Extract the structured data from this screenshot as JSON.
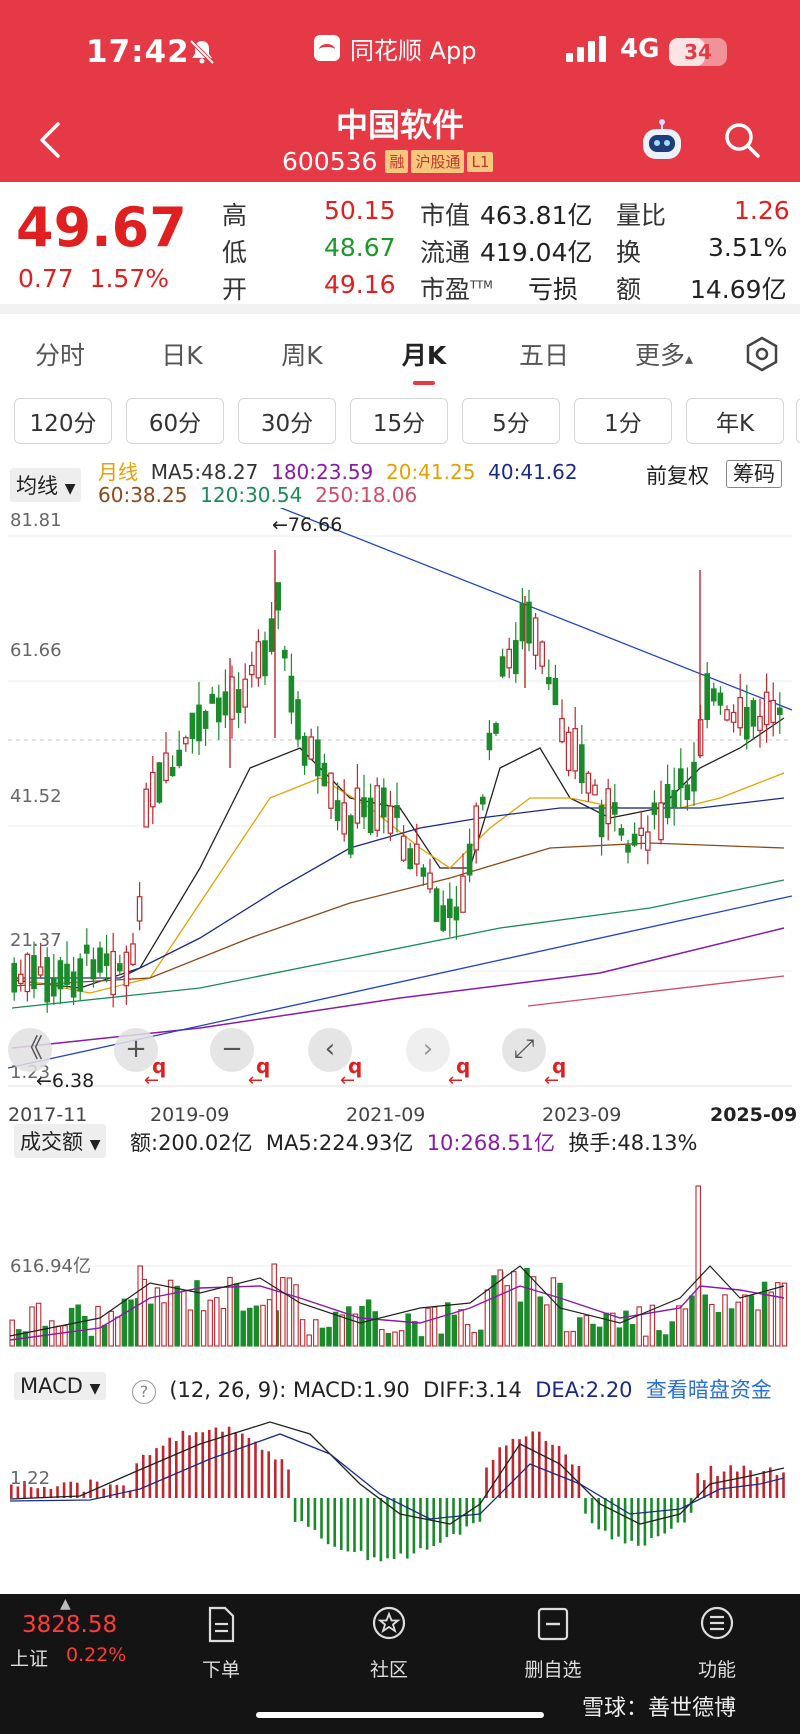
{
  "status": {
    "time": "17:42",
    "app_name": "同花顺 App",
    "network": "4G",
    "battery": "34"
  },
  "header": {
    "title": "中国软件",
    "code": "600536",
    "tags": [
      "融",
      "沪股通",
      "L1"
    ]
  },
  "quote": {
    "price": "49.67",
    "change": "0.77",
    "change_pct": "1.57%",
    "high_label": "高",
    "high": "50.15",
    "low_label": "低",
    "low": "48.67",
    "open_label": "开",
    "open": "49.16",
    "mcap_label": "市值",
    "mcap": "463.81亿",
    "float_label": "流通",
    "float": "419.04亿",
    "pe_label": "市盈",
    "pe_sup": "TTM",
    "pe": "亏损",
    "volratio_label": "量比",
    "volratio": "1.26",
    "turnover_label": "换",
    "turnover": "3.51%",
    "amount_label": "额",
    "amount": "14.69亿"
  },
  "tabs": [
    "分时",
    "日K",
    "周K",
    "月K",
    "五日",
    "更多"
  ],
  "tab_more_arrow": "▴",
  "intervals": [
    "120分",
    "60分",
    "30分",
    "15分",
    "5分",
    "1分",
    "年K"
  ],
  "ma": {
    "dropdown": "均线",
    "items_row1": [
      {
        "text": "月线",
        "color": "#e6a100"
      },
      {
        "text": "MA5:48.27",
        "color": "#333333"
      },
      {
        "text": "180:23.59",
        "color": "#8a1aa8"
      },
      {
        "text": "20:41.25",
        "color": "#e6a100"
      },
      {
        "text": "40:41.62",
        "color": "#1a2a8a"
      }
    ],
    "items_row2": [
      {
        "text": "60:38.25",
        "color": "#8a4a1a"
      },
      {
        "text": "120:30.54",
        "color": "#1a8a5a"
      },
      {
        "text": "250:18.06",
        "color": "#d04a6a"
      }
    ],
    "adjust": "前复权",
    "chips": "筹码"
  },
  "kline": {
    "y_labels": [
      "81.81",
      "61.66",
      "41.52",
      "21.37",
      "1.23"
    ],
    "high_mark": "←76.66",
    "low_mark": "←6.38",
    "x_labels": [
      "2017-11",
      "2019-09",
      "2021-09",
      "2023-09",
      "2025-09"
    ],
    "controls": [
      "《",
      "+",
      "−",
      "‹",
      "›",
      "⤢"
    ],
    "q_marks": [
      "q",
      "q",
      "q",
      "q",
      "q"
    ],
    "q_arrow": "←"
  },
  "volume": {
    "dropdown": "成交额",
    "amount": "额:200.02亿",
    "ma5": "MA5:224.93亿",
    "ma10": "10:268.51亿",
    "turnover": "换手:48.13%",
    "y_label": "616.94亿"
  },
  "macd": {
    "dropdown": "MACD",
    "help": "?",
    "params": "(12, 26, 9):",
    "macd": "MACD:1.90",
    "diff": "DIFF:3.14",
    "dea": "DEA:2.20",
    "link": "查看暗盘资金",
    "y_label": "1.22"
  },
  "bottom": {
    "index_value": "3828.58",
    "index_name": "上证",
    "index_pct": "0.22%",
    "nav": [
      "下单",
      "社区",
      "删自选",
      "功能"
    ],
    "watermark": "雪球：善世德博"
  }
}
